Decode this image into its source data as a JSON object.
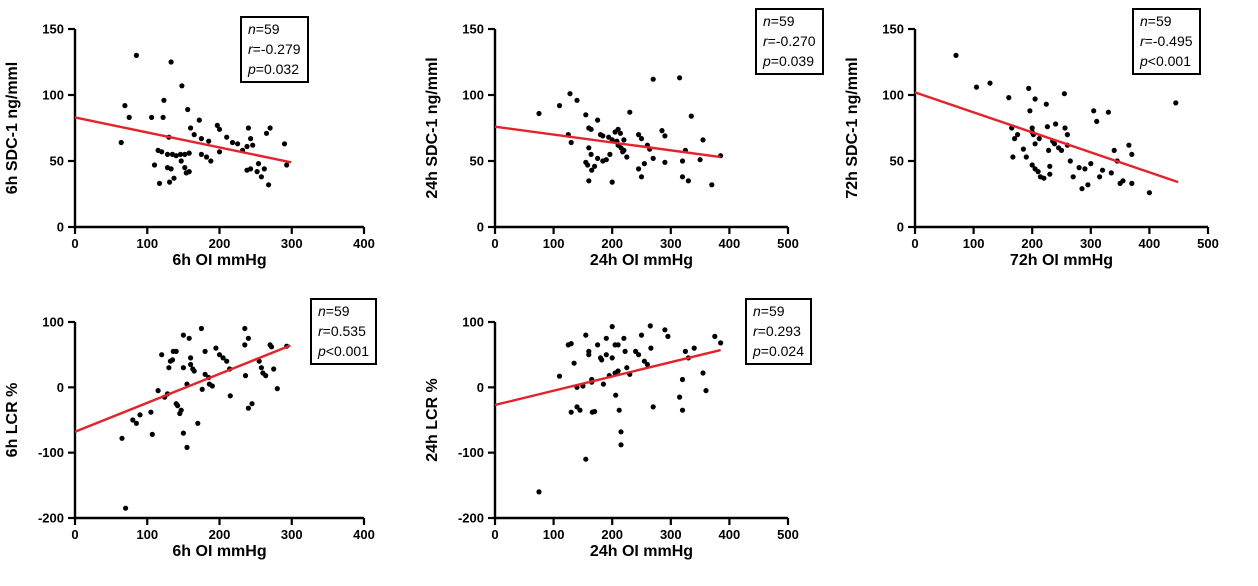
{
  "style": {
    "background": "#ffffff",
    "axis_color": "#000000",
    "point_color": "#000000",
    "trend_color": "#e8202a",
    "stats_border": "#000000"
  },
  "chart_data": [
    {
      "id": "sdc1-6h-vs-oi-6h",
      "type": "scatter",
      "xlabel": "6h OI mmHg",
      "ylabel": "6h SDC-1 ng/mml",
      "xlim": [
        0,
        400
      ],
      "ylim": [
        0,
        150
      ],
      "xticks": [
        0,
        100,
        200,
        300,
        400
      ],
      "yticks": [
        0,
        50,
        100,
        150
      ],
      "grid": false,
      "annotation": [
        {
          "var": "n",
          "rest": "=59"
        },
        {
          "var": "r",
          "rest": "=-0.279"
        },
        {
          "var": "p",
          "rest": "=0.032"
        }
      ],
      "trend": {
        "x1": 0,
        "y1": 83,
        "x2": 299,
        "y2": 49
      },
      "points": [
        [
          85,
          130
        ],
        [
          133,
          125
        ],
        [
          148,
          107
        ],
        [
          69,
          92
        ],
        [
          123,
          96
        ],
        [
          156,
          89
        ],
        [
          75,
          83
        ],
        [
          106,
          83
        ],
        [
          122,
          83
        ],
        [
          172,
          81
        ],
        [
          160,
          75
        ],
        [
          197,
          77
        ],
        [
          130,
          68
        ],
        [
          165,
          70
        ],
        [
          175,
          67
        ],
        [
          185,
          65
        ],
        [
          200,
          74
        ],
        [
          210,
          68
        ],
        [
          218,
          64
        ],
        [
          225,
          63
        ],
        [
          240,
          75
        ],
        [
          243,
          67
        ],
        [
          246,
          62
        ],
        [
          265,
          71
        ],
        [
          270,
          75
        ],
        [
          290,
          63
        ],
        [
          64,
          64
        ],
        [
          115,
          58
        ],
        [
          120,
          57
        ],
        [
          128,
          55
        ],
        [
          135,
          55
        ],
        [
          140,
          54
        ],
        [
          146,
          55
        ],
        [
          152,
          55
        ],
        [
          158,
          56
        ],
        [
          147,
          50
        ],
        [
          175,
          55
        ],
        [
          182,
          53
        ],
        [
          188,
          50
        ],
        [
          200,
          57
        ],
        [
          232,
          58
        ],
        [
          238,
          61
        ],
        [
          110,
          47
        ],
        [
          128,
          45
        ],
        [
          133,
          44
        ],
        [
          152,
          45
        ],
        [
          158,
          42
        ],
        [
          154,
          41
        ],
        [
          238,
          43
        ],
        [
          243,
          44
        ],
        [
          252,
          42
        ],
        [
          258,
          38
        ],
        [
          254,
          48
        ],
        [
          262,
          44
        ],
        [
          268,
          32
        ],
        [
          293,
          47
        ],
        [
          117,
          33
        ],
        [
          131,
          34
        ],
        [
          137,
          37
        ]
      ]
    },
    {
      "id": "sdc1-24h-vs-oi-24h",
      "type": "scatter",
      "xlabel": "24h OI mmHg",
      "ylabel": "24h SDC-1 ng/mml",
      "xlim": [
        0,
        500
      ],
      "ylim": [
        0,
        150
      ],
      "xticks": [
        0,
        100,
        200,
        300,
        400,
        500
      ],
      "yticks": [
        0,
        50,
        100,
        150
      ],
      "grid": false,
      "annotation": [
        {
          "var": "n",
          "rest": "=59"
        },
        {
          "var": "r",
          "rest": "=-0.270"
        },
        {
          "var": "p",
          "rest": "=0.039"
        }
      ],
      "trend": {
        "x1": 0,
        "y1": 76,
        "x2": 385,
        "y2": 53
      },
      "points": [
        [
          75,
          86
        ],
        [
          110,
          92
        ],
        [
          128,
          101
        ],
        [
          140,
          96
        ],
        [
          125,
          70
        ],
        [
          130,
          64
        ],
        [
          155,
          85
        ],
        [
          160,
          75
        ],
        [
          164,
          74
        ],
        [
          175,
          81
        ],
        [
          160,
          60
        ],
        [
          164,
          55
        ],
        [
          155,
          49
        ],
        [
          158,
          47
        ],
        [
          165,
          43
        ],
        [
          160,
          35
        ],
        [
          170,
          46
        ],
        [
          180,
          70
        ],
        [
          184,
          69
        ],
        [
          175,
          52
        ],
        [
          184,
          50
        ],
        [
          190,
          51
        ],
        [
          194,
          68
        ],
        [
          200,
          66
        ],
        [
          196,
          55
        ],
        [
          200,
          34
        ],
        [
          205,
          72
        ],
        [
          210,
          74
        ],
        [
          214,
          71
        ],
        [
          210,
          62
        ],
        [
          215,
          60
        ],
        [
          220,
          66
        ],
        [
          220,
          58
        ],
        [
          225,
          53
        ],
        [
          230,
          87
        ],
        [
          245,
          70
        ],
        [
          250,
          67
        ],
        [
          245,
          44
        ],
        [
          250,
          38
        ],
        [
          255,
          48
        ],
        [
          260,
          62
        ],
        [
          264,
          59
        ],
        [
          270,
          112
        ],
        [
          270,
          52
        ],
        [
          285,
          73
        ],
        [
          290,
          69
        ],
        [
          290,
          49
        ],
        [
          315,
          113
        ],
        [
          320,
          50
        ],
        [
          325,
          58
        ],
        [
          320,
          38
        ],
        [
          330,
          35
        ],
        [
          335,
          84
        ],
        [
          350,
          51
        ],
        [
          355,
          66
        ],
        [
          370,
          32
        ],
        [
          385,
          54
        ],
        [
          208,
          65
        ],
        [
          218,
          57
        ]
      ]
    },
    {
      "id": "sdc1-72h-vs-oi-72h",
      "type": "scatter",
      "xlabel": "72h OI mmHg",
      "ylabel": "72h SDC-1 ng/mml",
      "xlim": [
        0,
        500
      ],
      "ylim": [
        0,
        150
      ],
      "xticks": [
        0,
        100,
        200,
        300,
        400,
        500
      ],
      "yticks": [
        0,
        50,
        100,
        150
      ],
      "grid": false,
      "annotation": [
        {
          "var": "n",
          "rest": "=59"
        },
        {
          "var": "r",
          "rest": "=-0.495"
        },
        {
          "var": "p",
          "rest": "<0.001"
        }
      ],
      "trend": {
        "x1": 0,
        "y1": 102,
        "x2": 449,
        "y2": 34
      },
      "points": [
        [
          70,
          130
        ],
        [
          105,
          106
        ],
        [
          128,
          109
        ],
        [
          160,
          98
        ],
        [
          165,
          75
        ],
        [
          167,
          53
        ],
        [
          170,
          67
        ],
        [
          175,
          70
        ],
        [
          185,
          59
        ],
        [
          190,
          53
        ],
        [
          194,
          105
        ],
        [
          196,
          88
        ],
        [
          200,
          75
        ],
        [
          200,
          72
        ],
        [
          202,
          70
        ],
        [
          205,
          97
        ],
        [
          205,
          63
        ],
        [
          200,
          47
        ],
        [
          205,
          44
        ],
        [
          210,
          42
        ],
        [
          214,
          38
        ],
        [
          220,
          37
        ],
        [
          224,
          93
        ],
        [
          226,
          76
        ],
        [
          230,
          46
        ],
        [
          230,
          40
        ],
        [
          235,
          65
        ],
        [
          240,
          78
        ],
        [
          245,
          60
        ],
        [
          250,
          58
        ],
        [
          255,
          101
        ],
        [
          256,
          75
        ],
        [
          260,
          70
        ],
        [
          260,
          62
        ],
        [
          265,
          50
        ],
        [
          270,
          38
        ],
        [
          280,
          45
        ],
        [
          285,
          29
        ],
        [
          290,
          44
        ],
        [
          295,
          32
        ],
        [
          300,
          48
        ],
        [
          305,
          88
        ],
        [
          310,
          80
        ],
        [
          315,
          38
        ],
        [
          320,
          43
        ],
        [
          330,
          87
        ],
        [
          335,
          41
        ],
        [
          340,
          58
        ],
        [
          345,
          50
        ],
        [
          350,
          33
        ],
        [
          355,
          35
        ],
        [
          365,
          62
        ],
        [
          370,
          55
        ],
        [
          370,
          33
        ],
        [
          400,
          26
        ],
        [
          445,
          94
        ],
        [
          212,
          67
        ],
        [
          238,
          63
        ],
        [
          228,
          58
        ]
      ]
    },
    {
      "id": "lcr-6h-vs-oi-6h",
      "type": "scatter",
      "xlabel": "6h OI mmHg",
      "ylabel": "6h LCR %",
      "xlim": [
        0,
        400
      ],
      "ylim": [
        -200,
        100
      ],
      "xticks": [
        0,
        100,
        200,
        300,
        400
      ],
      "yticks": [
        -200,
        -100,
        0,
        100
      ],
      "grid": false,
      "annotation": [
        {
          "var": "n",
          "rest": "=59"
        },
        {
          "var": "r",
          "rest": "=0.535"
        },
        {
          "var": "p",
          "rest": "<0.001"
        }
      ],
      "trend": {
        "x1": 0,
        "y1": -68,
        "x2": 298,
        "y2": 64
      },
      "points": [
        [
          65,
          -78
        ],
        [
          70,
          -185
        ],
        [
          80,
          -50
        ],
        [
          85,
          -55
        ],
        [
          90,
          -42
        ],
        [
          105,
          -38
        ],
        [
          107,
          -72
        ],
        [
          115,
          -5
        ],
        [
          120,
          50
        ],
        [
          124,
          -15
        ],
        [
          128,
          -10
        ],
        [
          130,
          30
        ],
        [
          132,
          40
        ],
        [
          135,
          42
        ],
        [
          136,
          55
        ],
        [
          140,
          55
        ],
        [
          140,
          -25
        ],
        [
          142,
          -28
        ],
        [
          145,
          -40
        ],
        [
          147,
          -35
        ],
        [
          150,
          80
        ],
        [
          150,
          30
        ],
        [
          150,
          -70
        ],
        [
          155,
          5
        ],
        [
          155,
          -92
        ],
        [
          158,
          75
        ],
        [
          160,
          45
        ],
        [
          160,
          35
        ],
        [
          163,
          28
        ],
        [
          165,
          25
        ],
        [
          170,
          -55
        ],
        [
          175,
          90
        ],
        [
          176,
          -3
        ],
        [
          180,
          55
        ],
        [
          180,
          20
        ],
        [
          185,
          15
        ],
        [
          186,
          5
        ],
        [
          190,
          2
        ],
        [
          195,
          60
        ],
        [
          200,
          50
        ],
        [
          205,
          45
        ],
        [
          210,
          40
        ],
        [
          214,
          28
        ],
        [
          215,
          -13
        ],
        [
          235,
          90
        ],
        [
          235,
          65
        ],
        [
          236,
          18
        ],
        [
          240,
          75
        ],
        [
          240,
          -32
        ],
        [
          245,
          -25
        ],
        [
          255,
          40
        ],
        [
          258,
          30
        ],
        [
          260,
          22
        ],
        [
          264,
          18
        ],
        [
          270,
          65
        ],
        [
          272,
          62
        ],
        [
          275,
          28
        ],
        [
          280,
          -2
        ],
        [
          293,
          63
        ]
      ]
    },
    {
      "id": "lcr-24h-vs-oi-24h",
      "type": "scatter",
      "xlabel": "24h OI mmHg",
      "ylabel": "24h LCR %",
      "xlim": [
        0,
        500
      ],
      "ylim": [
        -200,
        100
      ],
      "xticks": [
        0,
        100,
        200,
        300,
        400,
        500
      ],
      "yticks": [
        -200,
        -100,
        0,
        100
      ],
      "grid": false,
      "annotation": [
        {
          "var": "n",
          "rest": "=59"
        },
        {
          "var": "r",
          "rest": "=0.293"
        },
        {
          "var": "p",
          "rest": "=0.024"
        }
      ],
      "trend": {
        "x1": 0,
        "y1": -27,
        "x2": 385,
        "y2": 57
      },
      "points": [
        [
          75,
          -160
        ],
        [
          110,
          17
        ],
        [
          125,
          65
        ],
        [
          130,
          67
        ],
        [
          130,
          -38
        ],
        [
          135,
          37
        ],
        [
          140,
          -30
        ],
        [
          145,
          -35
        ],
        [
          140,
          0
        ],
        [
          150,
          2
        ],
        [
          155,
          -110
        ],
        [
          155,
          80
        ],
        [
          160,
          55
        ],
        [
          160,
          50
        ],
        [
          165,
          12
        ],
        [
          165,
          8
        ],
        [
          166,
          -38
        ],
        [
          170,
          -37
        ],
        [
          175,
          65
        ],
        [
          180,
          45
        ],
        [
          182,
          42
        ],
        [
          185,
          5
        ],
        [
          190,
          75
        ],
        [
          190,
          50
        ],
        [
          195,
          18
        ],
        [
          200,
          93
        ],
        [
          200,
          45
        ],
        [
          205,
          65
        ],
        [
          205,
          22
        ],
        [
          206,
          -12
        ],
        [
          210,
          65
        ],
        [
          210,
          25
        ],
        [
          212,
          -35
        ],
        [
          215,
          -68
        ],
        [
          215,
          -88
        ],
        [
          220,
          75
        ],
        [
          222,
          55
        ],
        [
          225,
          30
        ],
        [
          230,
          20
        ],
        [
          240,
          55
        ],
        [
          245,
          50
        ],
        [
          250,
          80
        ],
        [
          255,
          40
        ],
        [
          260,
          35
        ],
        [
          265,
          94
        ],
        [
          266,
          60
        ],
        [
          270,
          -30
        ],
        [
          290,
          88
        ],
        [
          295,
          78
        ],
        [
          315,
          -15
        ],
        [
          320,
          12
        ],
        [
          320,
          -35
        ],
        [
          325,
          55
        ],
        [
          330,
          45
        ],
        [
          340,
          60
        ],
        [
          355,
          22
        ],
        [
          360,
          -5
        ],
        [
          375,
          78
        ],
        [
          385,
          68
        ]
      ]
    }
  ]
}
